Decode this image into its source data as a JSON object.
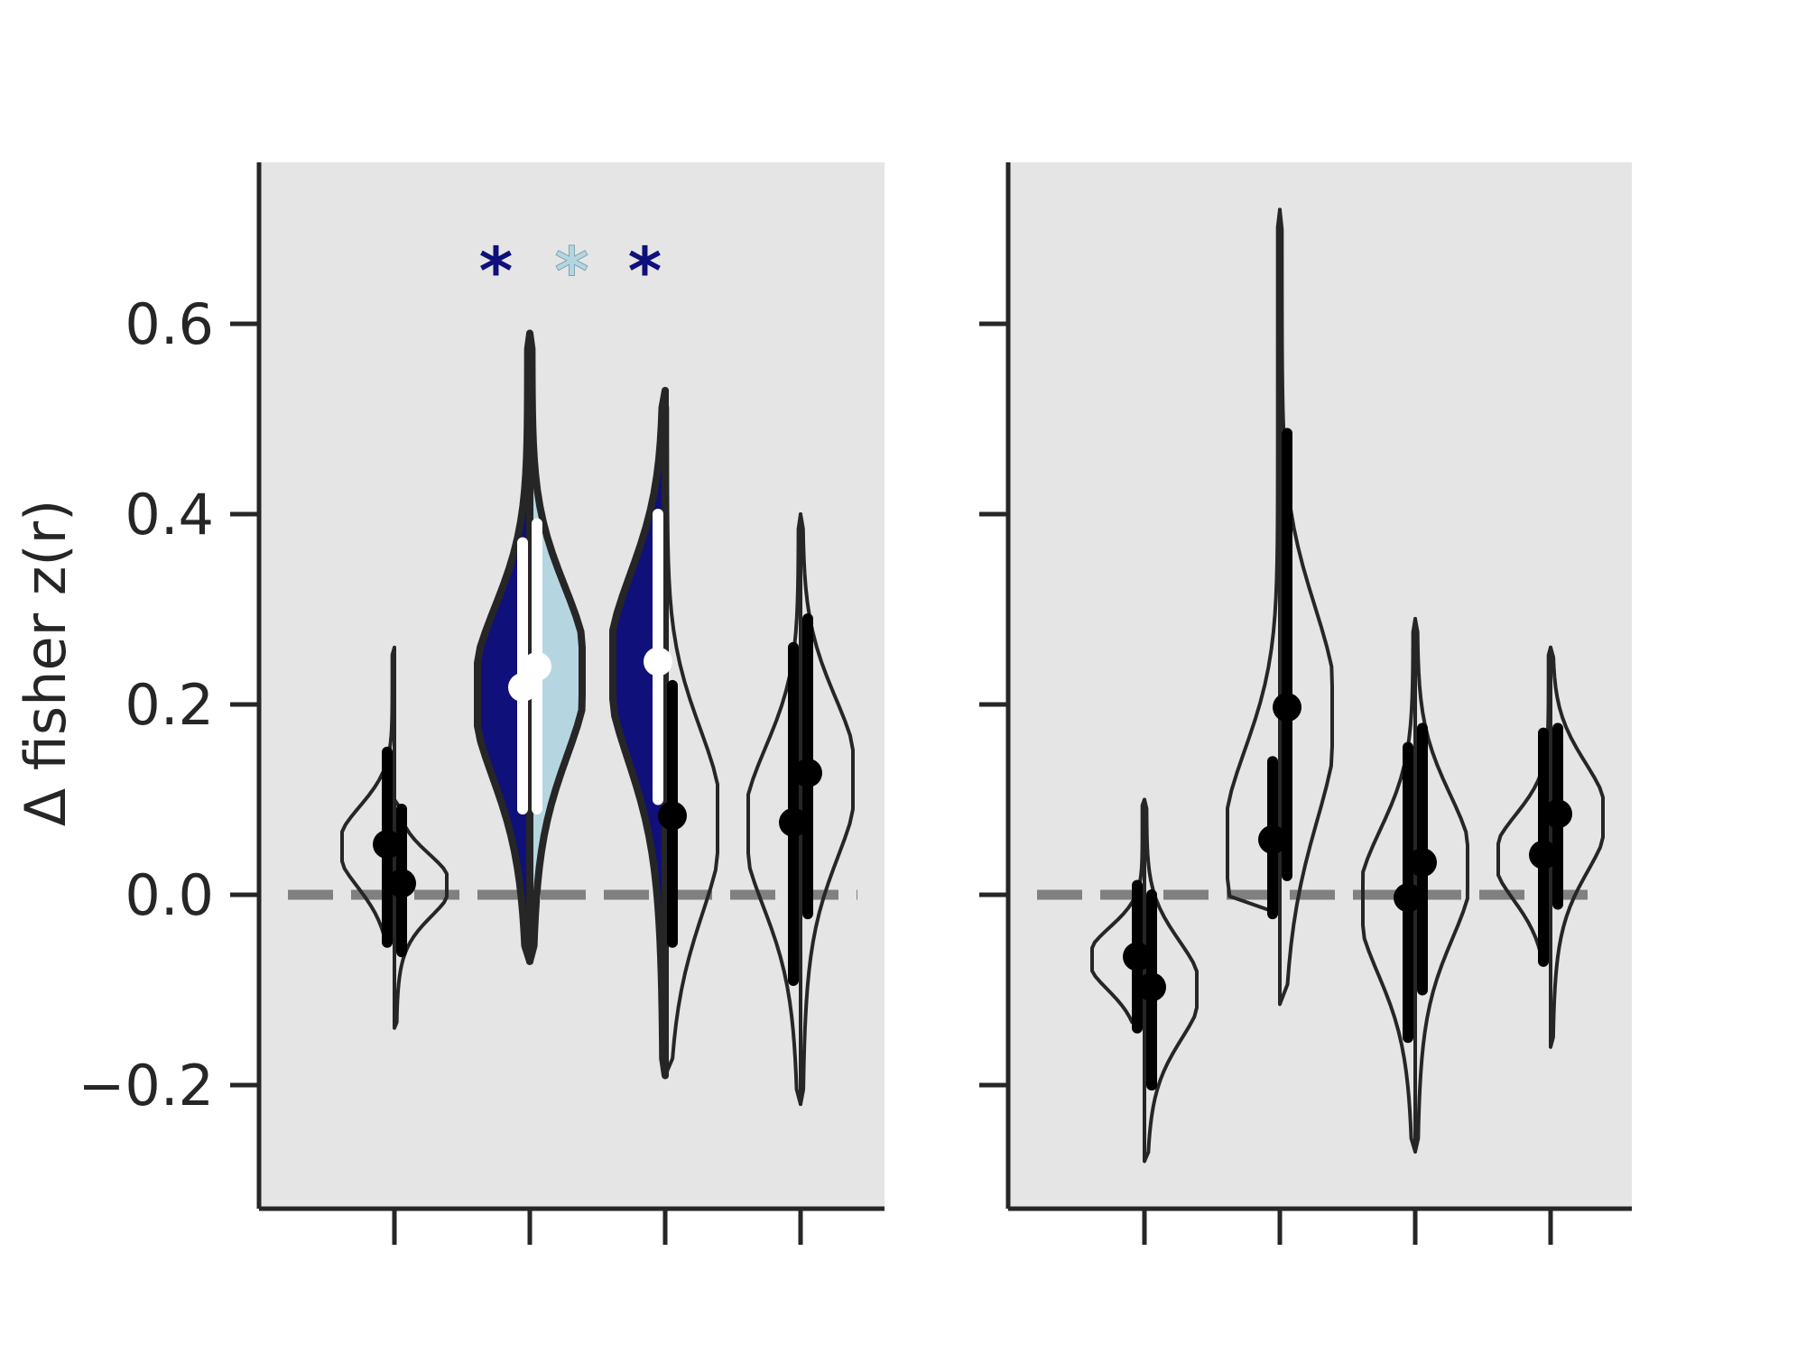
{
  "chart_data": [
    {
      "type": "violin",
      "panel": "left",
      "ylabel": "Δ fisher z(r)",
      "ylim": [
        -0.33,
        0.77
      ],
      "yticks": [
        -0.2,
        0.0,
        0.2,
        0.4,
        0.6
      ],
      "ytick_labels": [
        "−0.2",
        "0.0",
        "0.2",
        "0.4",
        "0.6"
      ],
      "reference_line": 0.0,
      "background": "#e5e5e5",
      "groups": [
        {
          "x": 1,
          "halves": [
            {
              "side": "left",
              "min": -0.05,
              "max": 0.26,
              "mean": 0.053,
              "ci": [
                -0.05,
                0.15
              ],
              "fill": "none",
              "marker": "#000000"
            },
            {
              "side": "right",
              "min": -0.14,
              "max": 0.1,
              "mean": 0.012,
              "ci": [
                -0.06,
                0.09
              ],
              "fill": "none",
              "marker": "#000000"
            }
          ]
        },
        {
          "x": 2,
          "halves": [
            {
              "side": "left",
              "min": -0.07,
              "max": 0.59,
              "mean": 0.218,
              "ci": [
                0.09,
                0.37
              ],
              "fill": "#10107a",
              "marker": "#ffffff"
            },
            {
              "side": "right",
              "min": -0.07,
              "max": 0.59,
              "mean": 0.24,
              "ci": [
                0.09,
                0.39
              ],
              "fill": "#b5d6e1",
              "marker": "#ffffff"
            }
          ]
        },
        {
          "x": 3,
          "halves": [
            {
              "side": "left",
              "min": -0.19,
              "max": 0.53,
              "mean": 0.245,
              "ci": [
                0.1,
                0.4
              ],
              "fill": "#10107a",
              "marker": "#ffffff"
            },
            {
              "side": "right",
              "min": -0.19,
              "max": 0.53,
              "mean": 0.083,
              "ci": [
                -0.05,
                0.22
              ],
              "fill": "none",
              "marker": "#000000"
            }
          ]
        },
        {
          "x": 4,
          "halves": [
            {
              "side": "left",
              "min": -0.22,
              "max": 0.4,
              "mean": 0.076,
              "ci": [
                -0.09,
                0.26
              ],
              "fill": "none",
              "marker": "#000000"
            },
            {
              "side": "right",
              "min": -0.22,
              "max": 0.4,
              "mean": 0.128,
              "ci": [
                -0.02,
                0.29
              ],
              "fill": "none",
              "marker": "#000000"
            }
          ]
        }
      ],
      "annotations": [
        {
          "text": "*",
          "x": 1.75,
          "y": 0.665,
          "color": "#10107a"
        },
        {
          "text": "*",
          "x": 2.31,
          "y": 0.665,
          "color": "#b5d6e1"
        },
        {
          "text": "*",
          "x": 2.85,
          "y": 0.665,
          "color": "#10107a"
        }
      ]
    },
    {
      "type": "violin",
      "panel": "right",
      "ylim": [
        -0.33,
        0.77
      ],
      "yticks": [
        -0.2,
        0.0,
        0.2,
        0.4,
        0.6
      ],
      "reference_line": 0.0,
      "background": "#e5e5e5",
      "groups": [
        {
          "x": 1,
          "halves": [
            {
              "side": "left",
              "min": -0.14,
              "max": 0.1,
              "mean": -0.065,
              "ci": [
                -0.14,
                0.01
              ],
              "fill": "none",
              "marker": "#000000"
            },
            {
              "side": "right",
              "min": -0.28,
              "max": 0.1,
              "mean": -0.097,
              "ci": [
                -0.2,
                0.0
              ],
              "fill": "none",
              "marker": "#000000"
            }
          ]
        },
        {
          "x": 2,
          "halves": [
            {
              "side": "left",
              "min": -0.02,
              "max": 0.72,
              "mean": 0.058,
              "ci": [
                -0.02,
                0.14
              ],
              "fill": "none",
              "marker": "#000000"
            },
            {
              "side": "right",
              "min": -0.115,
              "max": 0.72,
              "mean": 0.197,
              "ci": [
                0.02,
                0.485
              ],
              "fill": "none",
              "marker": "#000000"
            }
          ]
        },
        {
          "x": 3,
          "halves": [
            {
              "side": "left",
              "min": -0.27,
              "max": 0.29,
              "mean": -0.003,
              "ci": [
                -0.15,
                0.155
              ],
              "fill": "none",
              "marker": "#000000"
            },
            {
              "side": "right",
              "min": -0.27,
              "max": 0.29,
              "mean": 0.034,
              "ci": [
                -0.1,
                0.175
              ],
              "fill": "none",
              "marker": "#000000"
            }
          ]
        },
        {
          "x": 4,
          "halves": [
            {
              "side": "left",
              "min": -0.07,
              "max": 0.26,
              "mean": 0.042,
              "ci": [
                -0.07,
                0.17
              ],
              "fill": "none",
              "marker": "#000000"
            },
            {
              "side": "right",
              "min": -0.16,
              "max": 0.26,
              "mean": 0.085,
              "ci": [
                -0.01,
                0.175
              ],
              "fill": "none",
              "marker": "#000000"
            }
          ]
        }
      ]
    }
  ]
}
